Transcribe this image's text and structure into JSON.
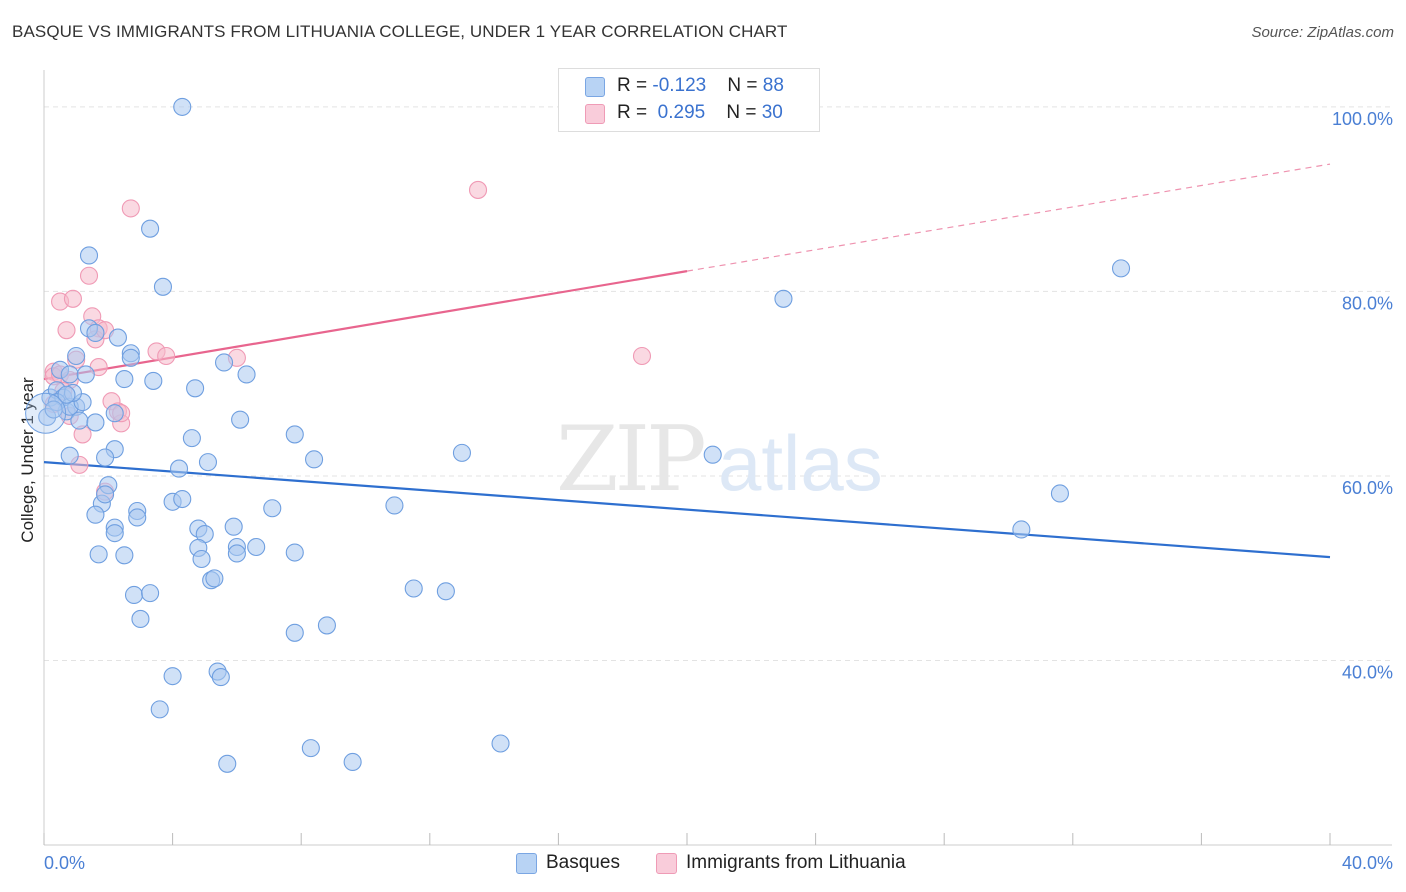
{
  "header": {
    "title": "BASQUE VS IMMIGRANTS FROM LITHUANIA COLLEGE, UNDER 1 YEAR CORRELATION CHART",
    "source": "Source: ZipAtlas.com"
  },
  "watermark": {
    "zip": "ZIP",
    "atlas": "atlas"
  },
  "legend": {
    "rows": [
      {
        "r_label": "R = ",
        "r_value": "-0.123",
        "n_label": "N = ",
        "n_value": "88",
        "color": "#a9c8f0"
      },
      {
        "r_label": "R = ",
        "r_value": "0.295",
        "n_label": "N = ",
        "n_value": "30",
        "color": "#f5b9cb"
      }
    ]
  },
  "chart_data": {
    "type": "scatter",
    "title": "BASQUE VS IMMIGRANTS FROM LITHUANIA COLLEGE, UNDER 1 YEAR CORRELATION CHART",
    "xlabel": "",
    "ylabel": "College, Under 1 year",
    "xlim": [
      0,
      40
    ],
    "ylim": [
      20,
      104
    ],
    "x_tick_labels": [
      "0.0%",
      "40.0%"
    ],
    "y_ticks": [
      40,
      60,
      80,
      100
    ],
    "y_tick_labels": [
      "40.0%",
      "60.0%",
      "80.0%",
      "100.0%"
    ],
    "grid": true,
    "legend_position": "bottom",
    "series": [
      {
        "name": "Basques",
        "color": "#6f9fe0",
        "fill": "#a9c8f0",
        "trend": {
          "x": [
            0,
            40
          ],
          "y": [
            61.5,
            51.2
          ],
          "color": "#2e6fcf"
        },
        "points": [
          [
            4.3,
            100.0
          ],
          [
            1.4,
            83.9
          ],
          [
            3.3,
            86.8
          ],
          [
            3.7,
            80.5
          ],
          [
            0.2,
            68.5
          ],
          [
            0.7,
            67.0
          ],
          [
            1.0,
            67.5
          ],
          [
            1.4,
            76.0
          ],
          [
            1.6,
            75.5
          ],
          [
            2.3,
            75.0
          ],
          [
            2.7,
            73.3
          ],
          [
            2.7,
            72.8
          ],
          [
            1.0,
            73.0
          ],
          [
            0.5,
            71.5
          ],
          [
            0.8,
            71.0
          ],
          [
            1.3,
            71.0
          ],
          [
            2.5,
            70.5
          ],
          [
            3.4,
            70.3
          ],
          [
            0.4,
            69.3
          ],
          [
            0.6,
            68.5
          ],
          [
            0.4,
            68.0
          ],
          [
            0.8,
            67.5
          ],
          [
            1.2,
            68.0
          ],
          [
            1.1,
            66.0
          ],
          [
            1.6,
            65.8
          ],
          [
            0.9,
            69.0
          ],
          [
            0.7,
            68.8
          ],
          [
            2.2,
            66.8
          ],
          [
            5.6,
            72.3
          ],
          [
            6.3,
            71.0
          ],
          [
            4.7,
            69.5
          ],
          [
            6.1,
            66.1
          ],
          [
            4.6,
            64.1
          ],
          [
            2.2,
            62.9
          ],
          [
            0.8,
            62.2
          ],
          [
            1.9,
            62.0
          ],
          [
            4.2,
            60.8
          ],
          [
            5.1,
            61.5
          ],
          [
            7.8,
            64.5
          ],
          [
            8.4,
            61.8
          ],
          [
            13.0,
            62.5
          ],
          [
            20.8,
            62.3
          ],
          [
            2.0,
            59.0
          ],
          [
            1.8,
            57.0
          ],
          [
            1.6,
            55.8
          ],
          [
            2.9,
            56.2
          ],
          [
            2.9,
            55.5
          ],
          [
            4.0,
            57.2
          ],
          [
            4.3,
            57.5
          ],
          [
            7.1,
            56.5
          ],
          [
            1.9,
            58.0
          ],
          [
            2.2,
            54.4
          ],
          [
            2.2,
            53.8
          ],
          [
            4.8,
            54.3
          ],
          [
            5.0,
            53.7
          ],
          [
            5.9,
            54.5
          ],
          [
            10.9,
            56.8
          ],
          [
            30.4,
            54.2
          ],
          [
            31.6,
            58.1
          ],
          [
            33.5,
            82.5
          ],
          [
            23.0,
            79.2
          ],
          [
            1.7,
            51.5
          ],
          [
            2.5,
            51.4
          ],
          [
            4.8,
            52.2
          ],
          [
            4.9,
            51.0
          ],
          [
            6.0,
            52.3
          ],
          [
            6.0,
            51.6
          ],
          [
            6.6,
            52.3
          ],
          [
            7.8,
            51.7
          ],
          [
            5.2,
            48.7
          ],
          [
            5.3,
            48.9
          ],
          [
            2.8,
            47.1
          ],
          [
            3.3,
            47.3
          ],
          [
            11.5,
            47.8
          ],
          [
            12.5,
            47.5
          ],
          [
            3.0,
            44.5
          ],
          [
            7.8,
            43.0
          ],
          [
            8.8,
            43.8
          ],
          [
            5.4,
            38.8
          ],
          [
            5.5,
            38.2
          ],
          [
            4.0,
            38.3
          ],
          [
            3.6,
            34.7
          ],
          [
            8.3,
            30.5
          ],
          [
            9.6,
            29.0
          ],
          [
            14.2,
            31.0
          ],
          [
            5.7,
            28.8
          ],
          [
            0.1,
            66.4
          ],
          [
            0.3,
            67.2
          ]
        ]
      },
      {
        "name": "Immigrants from Lithuania",
        "color": "#f09ab5",
        "fill": "#f5b9cb",
        "trend": {
          "x": [
            0,
            20
          ],
          "y": [
            70.5,
            82.2
          ],
          "dashed_to": {
            "x": 40,
            "y": 93.8
          },
          "color": "#e8658e"
        },
        "points": [
          [
            13.5,
            91.0
          ],
          [
            2.7,
            89.0
          ],
          [
            1.4,
            81.7
          ],
          [
            0.5,
            78.9
          ],
          [
            0.9,
            79.2
          ],
          [
            1.5,
            77.3
          ],
          [
            0.7,
            75.8
          ],
          [
            1.7,
            76.0
          ],
          [
            1.6,
            74.8
          ],
          [
            1.9,
            75.8
          ],
          [
            3.5,
            73.5
          ],
          [
            3.8,
            73.0
          ],
          [
            6.0,
            72.8
          ],
          [
            18.6,
            73.0
          ],
          [
            0.3,
            71.3
          ],
          [
            0.3,
            70.8
          ],
          [
            0.5,
            71.0
          ],
          [
            1.7,
            71.8
          ],
          [
            0.8,
            70.4
          ],
          [
            0.6,
            69.2
          ],
          [
            2.1,
            68.1
          ],
          [
            2.3,
            67.0
          ],
          [
            2.4,
            65.7
          ],
          [
            1.2,
            64.5
          ],
          [
            1.1,
            61.2
          ],
          [
            1.9,
            58.3
          ],
          [
            0.3,
            67.8
          ],
          [
            0.8,
            66.5
          ],
          [
            1.0,
            72.6
          ],
          [
            2.4,
            66.8
          ]
        ]
      }
    ]
  }
}
